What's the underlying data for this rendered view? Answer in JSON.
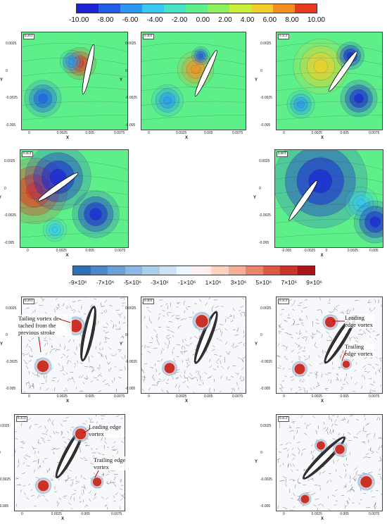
{
  "colorbar_top": {
    "labels": [
      "-10.00",
      "-8.00",
      "-6.00",
      "-4.00",
      "-2.00",
      "0.00",
      "2.00",
      "4.00",
      "6.00",
      "8.00",
      "10.00"
    ],
    "colors": [
      "#1a24d6",
      "#1f5fe6",
      "#2a98f0",
      "#38c7f0",
      "#45e3c4",
      "#5cef8a",
      "#8cf25a",
      "#c9ef3a",
      "#f2cf2a",
      "#f58e22",
      "#e83a1e"
    ]
  },
  "colorbar_bottom": {
    "labels": [
      "-9×10⁶",
      "-7×10⁶",
      "-5×10⁶",
      "-3×10⁶",
      "-1×10⁶",
      "1×10⁶",
      "3×10⁶",
      "5×10⁶",
      "7×10⁶",
      "9×10⁶"
    ],
    "colors": [
      "#2e6fb8",
      "#4a88c8",
      "#6ba0d6",
      "#8bb8e2",
      "#acd0ec",
      "#cfe2f4",
      "#eef4fa",
      "#fdf1ec",
      "#fad2c2",
      "#f5ae96",
      "#ea8468",
      "#db5a44",
      "#c83228",
      "#a81418"
    ]
  },
  "axes": {
    "ylabel": "Y",
    "xlabel": "X",
    "yticks": [
      "0.0025",
      "0",
      "-0.0025",
      "-0.005"
    ],
    "xticks_a": [
      "0",
      "0.0025",
      "0.005",
      "0.0075"
    ],
    "xticks_b": [
      "-0.005",
      "-0.0025",
      "0",
      "0.0025",
      "0.005"
    ]
  },
  "pressure_panels": [
    {
      "tag": "0.26T"
    },
    {
      "tag": "0.30T"
    },
    {
      "tag": "0.35T"
    },
    {
      "tag": "0.45T"
    },
    {
      "tag": "0.60T"
    }
  ],
  "vorticity_panels": [
    {
      "tag": "0.26T"
    },
    {
      "tag": "0.30T"
    },
    {
      "tag": "0.35T"
    },
    {
      "tag": "0.35T"
    },
    {
      "tag": "0.45T"
    }
  ],
  "annotations": {
    "tailing_vortex": "Tailing vortex de-tached from the previous stroke",
    "leading_edge_vortex": "Leading edge vortex",
    "trailing_edge_vortex": "Trailing edge vortex"
  }
}
